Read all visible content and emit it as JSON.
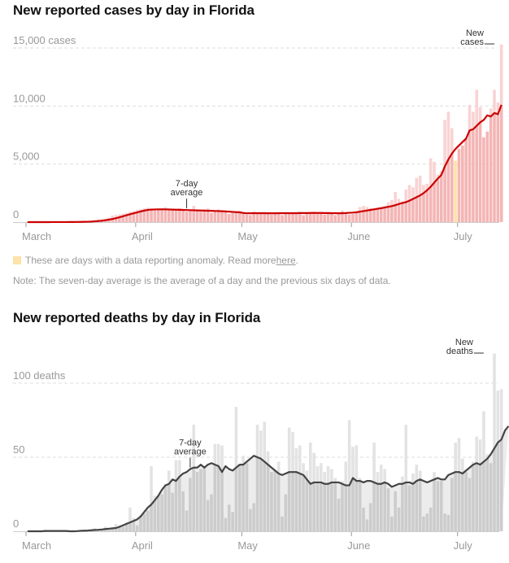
{
  "notes": {
    "anomaly_text": "These are days with a data reporting anomaly. Read more ",
    "anomaly_link": "here",
    "anomaly_end": ".",
    "seven_day": "Note: The seven-day average is the average of a day and the previous six days of data."
  },
  "colors": {
    "cases_bar": "#f4b5b5",
    "cases_bar_light": "#f9d3d3",
    "cases_line": "#cc0000",
    "anomaly": "#fde3a7",
    "deaths_bar": "#cccccc",
    "deaths_bar_light": "#e3e3e3",
    "deaths_area": "#ececec",
    "deaths_line": "#444444"
  },
  "chart_data": [
    {
      "type": "bar",
      "title": "New reported cases by day in Florida",
      "xlabel": "",
      "ylabel": "cases",
      "start_date": "March 1",
      "ylim": [
        0,
        15000
      ],
      "y_ticks": [
        {
          "value": 0,
          "label": "0"
        },
        {
          "value": 5000,
          "label": "5,000"
        },
        {
          "value": 10000,
          "label": "10,000"
        },
        {
          "value": 15000,
          "label": "15,000 cases"
        }
      ],
      "x_ticks": [
        {
          "day": 0,
          "label": "March"
        },
        {
          "day": 31,
          "label": "April"
        },
        {
          "day": 61,
          "label": "May"
        },
        {
          "day": 92,
          "label": "June"
        },
        {
          "day": 122,
          "label": "July"
        }
      ],
      "annotations": [
        {
          "text": [
            "7-day",
            "average"
          ],
          "day": 45
        },
        {
          "text": [
            "New",
            "cases"
          ],
          "day": 132
        }
      ],
      "anomaly_days": [
        121
      ],
      "series": [
        {
          "name": "New cases",
          "values": [
            0,
            0,
            2,
            0,
            2,
            3,
            2,
            4,
            4,
            6,
            8,
            10,
            15,
            20,
            30,
            40,
            50,
            60,
            110,
            180,
            230,
            250,
            300,
            400,
            560,
            620,
            680,
            720,
            800,
            900,
            950,
            1050,
            1100,
            1200,
            1250,
            1150,
            1000,
            1100,
            1200,
            1300,
            1150,
            1100,
            1050,
            1200,
            1000,
            900,
            1100,
            1400,
            1000,
            900,
            1100,
            1200,
            800,
            900,
            1100,
            1000,
            950,
            700,
            800,
            900,
            1000,
            700,
            650,
            600,
            900,
            800,
            750,
            850,
            700,
            650,
            800,
            750,
            600,
            700,
            850,
            800,
            750,
            900,
            600,
            750,
            800,
            900,
            750,
            700,
            650,
            800,
            750,
            600,
            700,
            1000,
            800,
            650,
            700,
            900,
            1300,
            1400,
            1300,
            1200,
            1100,
            1250,
            1300,
            1400,
            1700,
            1900,
            2600,
            2000,
            1800,
            2800,
            3200,
            3000,
            3800,
            4000,
            3200,
            3300,
            5500,
            5200,
            4100,
            4400,
            8800,
            9500,
            8100,
            5300,
            6300,
            6600,
            7200,
            10100,
            9500,
            11400,
            9900,
            7300,
            7800,
            9800,
            11400,
            10300,
            15300
          ]
        },
        {
          "name": "7-day average",
          "values": [
            0,
            0,
            1,
            1,
            1,
            2,
            2,
            3,
            3,
            4,
            5,
            6,
            8,
            10,
            14,
            18,
            24,
            32,
            45,
            65,
            90,
            120,
            160,
            210,
            270,
            340,
            420,
            500,
            590,
            680,
            760,
            840,
            920,
            990,
            1050,
            1080,
            1090,
            1100,
            1100,
            1100,
            1090,
            1080,
            1070,
            1060,
            1050,
            1040,
            1030,
            1020,
            1010,
            1000,
            990,
            980,
            970,
            960,
            950,
            940,
            920,
            900,
            880,
            860,
            840,
            790,
            760,
            760,
            770,
            770,
            770,
            770,
            760,
            760,
            760,
            770,
            770,
            770,
            770,
            770,
            770,
            780,
            780,
            780,
            790,
            790,
            790,
            790,
            780,
            780,
            770,
            770,
            760,
            770,
            780,
            800,
            820,
            850,
            900,
            950,
            1000,
            1050,
            1100,
            1150,
            1200,
            1260,
            1320,
            1380,
            1460,
            1560,
            1640,
            1720,
            1850,
            2000,
            2150,
            2300,
            2500,
            2750,
            3050,
            3400,
            3750,
            4050,
            4800,
            5400,
            5900,
            6300,
            6600,
            6900,
            7200,
            7900,
            8000,
            8300,
            8600,
            8800,
            9200,
            9100,
            9400,
            9300,
            10100
          ]
        }
      ]
    },
    {
      "type": "bar",
      "title": "New reported deaths by day in Florida",
      "xlabel": "",
      "ylabel": "deaths",
      "start_date": "March 1",
      "ylim": [
        0,
        100
      ],
      "y_ticks": [
        {
          "value": 0,
          "label": "0"
        },
        {
          "value": 50,
          "label": "50"
        },
        {
          "value": 100,
          "label": "100 deaths"
        }
      ],
      "x_ticks": [
        {
          "day": 0,
          "label": "March"
        },
        {
          "day": 31,
          "label": "April"
        },
        {
          "day": 61,
          "label": "May"
        },
        {
          "day": 92,
          "label": "June"
        },
        {
          "day": 122,
          "label": "July"
        }
      ],
      "annotations": [
        {
          "text": [
            "7-day",
            "average"
          ],
          "day": 46
        },
        {
          "text": [
            "New",
            "deaths"
          ],
          "day": 129
        }
      ],
      "series": [
        {
          "name": "New deaths",
          "values": [
            0,
            0,
            0,
            0,
            0,
            1,
            0,
            0,
            0,
            0,
            0,
            0,
            0,
            0,
            0,
            1,
            1,
            0,
            1,
            2,
            1,
            1,
            3,
            1,
            2,
            5,
            4,
            3,
            6,
            16,
            9,
            4,
            11,
            12,
            14,
            44,
            24,
            24,
            25,
            32,
            41,
            26,
            48,
            48,
            27,
            14,
            36,
            72,
            40,
            42,
            44,
            21,
            25,
            59,
            59,
            58,
            9,
            18,
            13,
            84,
            45,
            51,
            46,
            15,
            19,
            72,
            68,
            74,
            54,
            40,
            41,
            47,
            10,
            25,
            70,
            67,
            56,
            58,
            46,
            41,
            60,
            53,
            44,
            46,
            40,
            44,
            42,
            36,
            22,
            34,
            47,
            75,
            57,
            58,
            36,
            16,
            8,
            19,
            60,
            40,
            45,
            42,
            29,
            10,
            27,
            16,
            37,
            72,
            31,
            39,
            45,
            41,
            10,
            12,
            16,
            40,
            34,
            34,
            12,
            11,
            36,
            60,
            63,
            49,
            40,
            36,
            47,
            64,
            62,
            81,
            52,
            46,
            120,
            95,
            96
          ]
        },
        {
          "name": "7-day average",
          "values": [
            0,
            0,
            0,
            0,
            0,
            0.2,
            0.2,
            0.2,
            0.2,
            0.2,
            0.2,
            0.2,
            0,
            0,
            0.1,
            0.3,
            0.4,
            0.5,
            0.7,
            0.9,
            1,
            1.2,
            1.5,
            1.7,
            2,
            2.2,
            3,
            4,
            5,
            6,
            7,
            8,
            10,
            13,
            16,
            18,
            21,
            24,
            28,
            31,
            32,
            35,
            34,
            37,
            39,
            40,
            42,
            43,
            43,
            45,
            43,
            45,
            46,
            45,
            44,
            40,
            44,
            42,
            41,
            43,
            45,
            45,
            47,
            49,
            51,
            50,
            49,
            47,
            45,
            43,
            41,
            39,
            38,
            39,
            40,
            40,
            40,
            39,
            38,
            35,
            32,
            33,
            33,
            33,
            32,
            32,
            33,
            33,
            33,
            32,
            31,
            31,
            36,
            34,
            34,
            33,
            34,
            34,
            33,
            32,
            32,
            33,
            32,
            30,
            31,
            32,
            32,
            33,
            33,
            32,
            34,
            35,
            34,
            33,
            34,
            35,
            36,
            35,
            35,
            38,
            39,
            40,
            40,
            39,
            41,
            43,
            45,
            46,
            45,
            47,
            49,
            52,
            56,
            60,
            62,
            68,
            71
          ]
        }
      ]
    }
  ]
}
